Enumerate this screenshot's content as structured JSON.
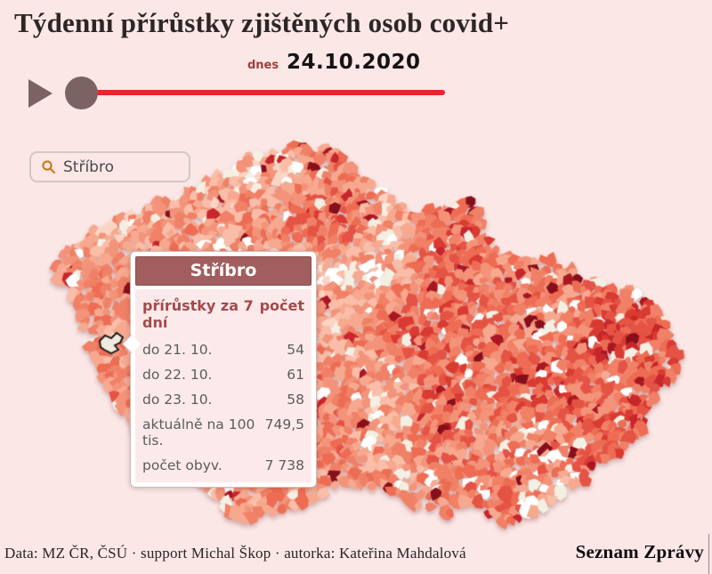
{
  "title": "Týdenní přírůstky zjištěných osob covid+",
  "controls": {
    "today_label": "dnes",
    "date": "24.10.2020"
  },
  "search": {
    "value": "Stříbro"
  },
  "tooltip": {
    "title": "Stříbro",
    "columns": {
      "label": "přírůstky za 7 dní",
      "value": "počet"
    },
    "rows": [
      {
        "label": "do 21. 10.",
        "value": "54"
      },
      {
        "label": "do 22. 10.",
        "value": "61"
      },
      {
        "label": "do 23. 10.",
        "value": "58"
      },
      {
        "label": "aktuálně na 100 tis.",
        "value": "749,5"
      },
      {
        "label": "počet obyv.",
        "value": "7 738"
      }
    ]
  },
  "footer": {
    "credits": "Data: MZ ČR, ČSÚ · support Michal Škop · autorka: Kateřina Mahdalová",
    "brand": "Seznam Zprávy"
  },
  "map": {
    "highlighted_municipality": "Stříbro",
    "colors": {
      "page_background": "#fae7e6",
      "slider_track": "#e8262b",
      "slider_controls": "#7b6364",
      "tooltip_header": "#a25e5e",
      "tooltip_body": "#fceaea",
      "highlight_outline": "#161616",
      "search_icon": "#c7791f"
    },
    "palette": [
      "#ffffff",
      "#f4efe3",
      "#fbd4c4",
      "#f9bda8",
      "#f6a98f",
      "#f3937a",
      "#f08066",
      "#ed6c53",
      "#e55344",
      "#d93a31",
      "#c7262b",
      "#a81722",
      "#870f1b"
    ]
  }
}
